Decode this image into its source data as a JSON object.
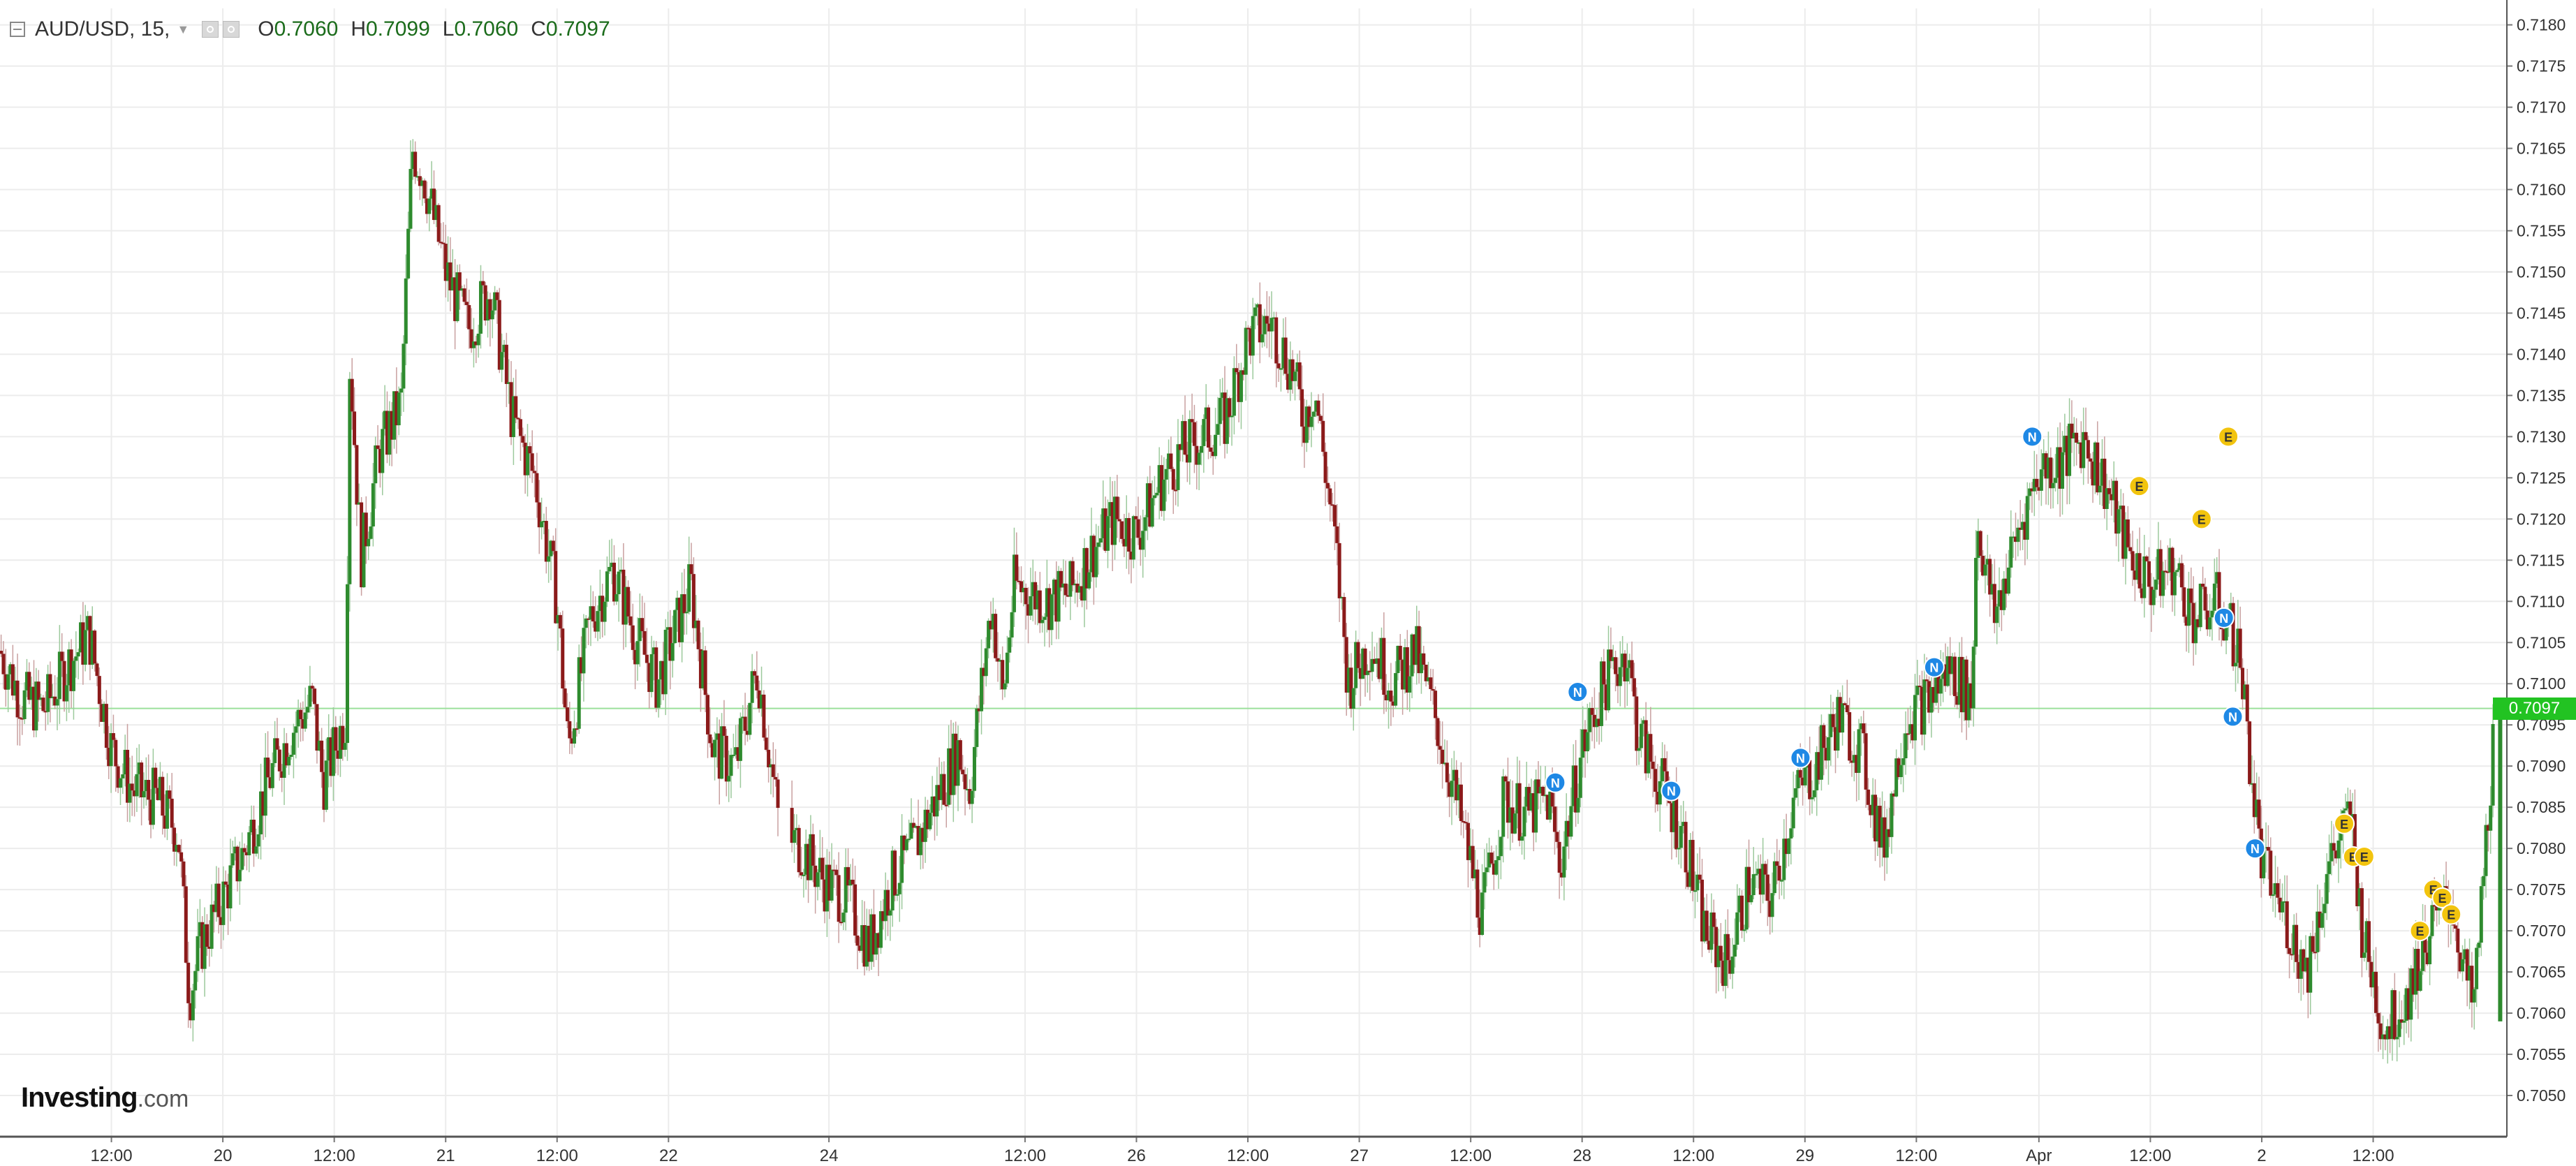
{
  "header": {
    "symbol": "AUD/USD, 15,",
    "open_label": "O",
    "open": "0.7060",
    "high_label": "H",
    "high": "0.7099",
    "low_label": "L",
    "low": "0.7060",
    "close_label": "C",
    "close": "0.7097"
  },
  "logo": {
    "name": "Investing",
    "suffix": ".com"
  },
  "last_price": "0.7097",
  "colors": {
    "up": "#2e8b2e",
    "down": "#8b1a1a",
    "wick": "#c9a0a0",
    "grid": "#ececec",
    "last_line": "#9be09b",
    "badge": "#22c322",
    "news": "#1e88e5",
    "econ": "#f2c40e"
  },
  "icons": {
    "collapse": "collapse-icon",
    "settings": "gear-icon",
    "visibility": "eye-icon"
  },
  "chart_data": {
    "type": "candlestick",
    "interval": "15",
    "ylim": [
      0.7045,
      0.7182
    ],
    "y_ticks": [
      "0.7180",
      "0.7175",
      "0.7170",
      "0.7165",
      "0.7160",
      "0.7155",
      "0.7150",
      "0.7145",
      "0.7140",
      "0.7135",
      "0.7130",
      "0.7125",
      "0.7120",
      "0.7115",
      "0.7110",
      "0.7105",
      "0.7100",
      "0.7095",
      "0.7090",
      "0.7085",
      "0.7080",
      "0.7075",
      "0.7070",
      "0.7065",
      "0.7060",
      "0.7055",
      "0.7050"
    ],
    "x_ticks": [
      {
        "label": "12:00",
        "t": 0.5
      },
      {
        "label": "20",
        "t": 1
      },
      {
        "label": "12:00",
        "t": 1.5
      },
      {
        "label": "21",
        "t": 2
      },
      {
        "label": "12:00",
        "t": 2.5
      },
      {
        "label": "22",
        "t": 3
      },
      {
        "label": "24",
        "t": 3.72
      },
      {
        "label": "12:00",
        "t": 4.6
      },
      {
        "label": "26",
        "t": 5.1
      },
      {
        "label": "12:00",
        "t": 5.6
      },
      {
        "label": "27",
        "t": 6.1
      },
      {
        "label": "12:00",
        "t": 6.6
      },
      {
        "label": "28",
        "t": 7.1
      },
      {
        "label": "12:00",
        "t": 7.6
      },
      {
        "label": "29",
        "t": 8.1
      },
      {
        "label": "12:00",
        "t": 8.6
      },
      {
        "label": "Apr",
        "t": 9.15
      },
      {
        "label": "12:00",
        "t": 9.65
      },
      {
        "label": "2",
        "t": 10.15
      },
      {
        "label": "12:00",
        "t": 10.65
      }
    ],
    "price_path": [
      [
        0.0,
        0.7104
      ],
      [
        0.1,
        0.7098
      ],
      [
        0.2,
        0.7097
      ],
      [
        0.3,
        0.7102
      ],
      [
        0.4,
        0.7106
      ],
      [
        0.5,
        0.7092
      ],
      [
        0.6,
        0.7087
      ],
      [
        0.7,
        0.7086
      ],
      [
        0.8,
        0.7082
      ],
      [
        0.85,
        0.7062
      ],
      [
        0.9,
        0.7068
      ],
      [
        1.0,
        0.7074
      ],
      [
        1.1,
        0.708
      ],
      [
        1.2,
        0.7088
      ],
      [
        1.3,
        0.7094
      ],
      [
        1.4,
        0.7098
      ],
      [
        1.45,
        0.7088
      ],
      [
        1.55,
        0.7096
      ],
      [
        1.57,
        0.714
      ],
      [
        1.62,
        0.7115
      ],
      [
        1.7,
        0.7128
      ],
      [
        1.8,
        0.7134
      ],
      [
        1.85,
        0.7165
      ],
      [
        1.9,
        0.7162
      ],
      [
        2.0,
        0.715
      ],
      [
        2.1,
        0.7143
      ],
      [
        2.2,
        0.7148
      ],
      [
        2.3,
        0.7132
      ],
      [
        2.4,
        0.7125
      ],
      [
        2.5,
        0.711
      ],
      [
        2.55,
        0.7092
      ],
      [
        2.65,
        0.7108
      ],
      [
        2.75,
        0.7114
      ],
      [
        2.85,
        0.7106
      ],
      [
        2.95,
        0.71
      ],
      [
        3.05,
        0.7108
      ],
      [
        3.1,
        0.7112
      ],
      [
        3.2,
        0.7092
      ],
      [
        3.3,
        0.709
      ],
      [
        3.4,
        0.7102
      ],
      [
        3.5,
        0.7082
      ],
      [
        3.6,
        0.708
      ],
      [
        3.7,
        0.7076
      ],
      [
        3.8,
        0.7074
      ],
      [
        3.9,
        0.7068
      ],
      [
        4.0,
        0.7076
      ],
      [
        4.1,
        0.708
      ],
      [
        4.2,
        0.7086
      ],
      [
        4.3,
        0.7092
      ],
      [
        4.35,
        0.7087
      ],
      [
        4.45,
        0.711
      ],
      [
        4.5,
        0.7098
      ],
      [
        4.55,
        0.7112
      ],
      [
        4.7,
        0.711
      ],
      [
        4.8,
        0.7111
      ],
      [
        4.9,
        0.7116
      ],
      [
        5.0,
        0.712
      ],
      [
        5.1,
        0.7118
      ],
      [
        5.2,
        0.7124
      ],
      [
        5.3,
        0.7128
      ],
      [
        5.4,
        0.713
      ],
      [
        5.5,
        0.7132
      ],
      [
        5.6,
        0.7142
      ],
      [
        5.7,
        0.7144
      ],
      [
        5.8,
        0.7138
      ],
      [
        5.85,
        0.7132
      ],
      [
        5.9,
        0.7136
      ],
      [
        6.0,
        0.7115
      ],
      [
        6.05,
        0.71
      ],
      [
        6.15,
        0.7105
      ],
      [
        6.25,
        0.71
      ],
      [
        6.35,
        0.7104
      ],
      [
        6.45,
        0.7095
      ],
      [
        6.55,
        0.7084
      ],
      [
        6.65,
        0.7072
      ],
      [
        6.75,
        0.7086
      ],
      [
        6.85,
        0.7084
      ],
      [
        6.95,
        0.7086
      ],
      [
        7.0,
        0.7078
      ],
      [
        7.1,
        0.7092
      ],
      [
        7.2,
        0.71
      ],
      [
        7.3,
        0.7104
      ],
      [
        7.35,
        0.7094
      ],
      [
        7.45,
        0.7088
      ],
      [
        7.55,
        0.7082
      ],
      [
        7.65,
        0.707
      ],
      [
        7.75,
        0.7066
      ],
      [
        7.85,
        0.7076
      ],
      [
        7.95,
        0.7074
      ],
      [
        8.05,
        0.7086
      ],
      [
        8.15,
        0.709
      ],
      [
        8.25,
        0.7096
      ],
      [
        8.35,
        0.7092
      ],
      [
        8.45,
        0.708
      ],
      [
        8.55,
        0.7096
      ],
      [
        8.65,
        0.7098
      ],
      [
        8.75,
        0.7102
      ],
      [
        8.85,
        0.7098
      ],
      [
        8.87,
        0.712
      ],
      [
        8.95,
        0.7108
      ],
      [
        9.05,
        0.7118
      ],
      [
        9.15,
        0.7126
      ],
      [
        9.25,
        0.7127
      ],
      [
        9.35,
        0.713
      ],
      [
        9.45,
        0.7124
      ],
      [
        9.55,
        0.7116
      ],
      [
        9.65,
        0.7112
      ],
      [
        9.75,
        0.7114
      ],
      [
        9.85,
        0.7108
      ],
      [
        9.95,
        0.711
      ],
      [
        10.05,
        0.7104
      ],
      [
        10.1,
        0.709
      ],
      [
        10.15,
        0.7078
      ],
      [
        10.25,
        0.7072
      ],
      [
        10.35,
        0.7065
      ],
      [
        10.45,
        0.7078
      ],
      [
        10.55,
        0.7084
      ],
      [
        10.6,
        0.707
      ],
      [
        10.7,
        0.7058
      ],
      [
        10.8,
        0.7062
      ],
      [
        10.9,
        0.707
      ],
      [
        11.0,
        0.7074
      ],
      [
        11.05,
        0.7066
      ],
      [
        11.1,
        0.706
      ],
      [
        11.2,
        0.7097
      ]
    ],
    "events": [
      {
        "type": "N",
        "t": 9.12,
        "y": 0.713
      },
      {
        "type": "E",
        "t": 9.6,
        "y": 0.7124
      },
      {
        "type": "E",
        "t": 10.0,
        "y": 0.713
      },
      {
        "type": "E",
        "t": 9.88,
        "y": 0.712
      },
      {
        "type": "N",
        "t": 9.98,
        "y": 0.7108
      },
      {
        "type": "N",
        "t": 10.02,
        "y": 0.7096
      },
      {
        "type": "N",
        "t": 10.12,
        "y": 0.708
      },
      {
        "type": "N",
        "t": 8.68,
        "y": 0.7102
      },
      {
        "type": "N",
        "t": 8.08,
        "y": 0.7091
      },
      {
        "type": "N",
        "t": 7.5,
        "y": 0.7087
      },
      {
        "type": "N",
        "t": 7.08,
        "y": 0.7099
      },
      {
        "type": "N",
        "t": 6.98,
        "y": 0.7088
      },
      {
        "type": "E",
        "t": 10.52,
        "y": 0.7083
      },
      {
        "type": "E",
        "t": 10.56,
        "y": 0.7079
      },
      {
        "type": "E",
        "t": 10.61,
        "y": 0.7079
      },
      {
        "type": "E",
        "t": 10.86,
        "y": 0.707
      },
      {
        "type": "E",
        "t": 10.92,
        "y": 0.7075
      },
      {
        "type": "E",
        "t": 10.96,
        "y": 0.7074
      },
      {
        "type": "E",
        "t": 11.0,
        "y": 0.7072
      }
    ]
  }
}
